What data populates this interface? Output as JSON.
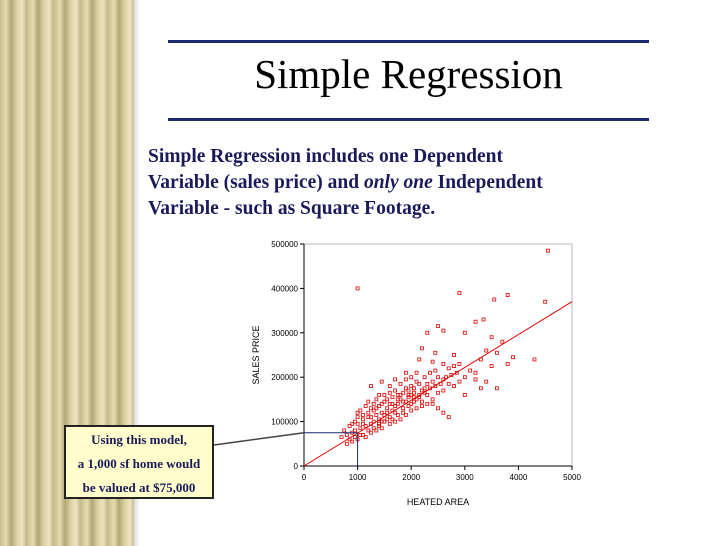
{
  "slide": {
    "title": "Simple Regression",
    "body": {
      "line1": "Simple Regression includes one Dependent",
      "line2_pre": "Variable (sales price)  and ",
      "line2_em": "only one",
      "line2_post": " Independent",
      "line3": "Variable - such as Square Footage."
    },
    "callout": {
      "line1": "Using this model,",
      "line2": "a 1,000 sf home would",
      "line3": "be valued at $75,000"
    }
  },
  "colors": {
    "rule": "#1a2a6c",
    "point": "#dd0000",
    "fit_line": "#dd0000",
    "callout_bg": "#fffecc",
    "text": "#1a1a5a"
  },
  "chart_data": {
    "type": "scatter",
    "xlabel": "HEATED AREA",
    "ylabel": "SALES PRICE",
    "xlim": [
      0,
      5000
    ],
    "ylim": [
      0,
      500000
    ],
    "x_ticks": [
      0,
      1000,
      2000,
      3000,
      4000,
      5000
    ],
    "y_ticks": [
      0,
      100000,
      200000,
      300000,
      400000,
      500000
    ],
    "x_tick_labels": [
      "0",
      "1000",
      "2000",
      "3000",
      "4000",
      "5000"
    ],
    "y_tick_labels": [
      "0",
      "100000",
      "200000",
      "300000",
      "400000",
      "500000"
    ],
    "fit_line": {
      "x": [
        0,
        5000
      ],
      "y": [
        0,
        370000
      ]
    },
    "annotation_point": {
      "x": 1000,
      "y": 75000
    },
    "points": [
      [
        4550,
        485000
      ],
      [
        1000,
        400000
      ],
      [
        2900,
        390000
      ],
      [
        3550,
        375000
      ],
      [
        3800,
        385000
      ],
      [
        4500,
        370000
      ],
      [
        3200,
        325000
      ],
      [
        3350,
        330000
      ],
      [
        2500,
        315000
      ],
      [
        2600,
        305000
      ],
      [
        3000,
        300000
      ],
      [
        3500,
        290000
      ],
      [
        4300,
        240000
      ],
      [
        3900,
        245000
      ],
      [
        3700,
        280000
      ],
      [
        3400,
        260000
      ],
      [
        3600,
        255000
      ],
      [
        3300,
        240000
      ],
      [
        2300,
        300000
      ],
      [
        2200,
        265000
      ],
      [
        2150,
        240000
      ],
      [
        2400,
        235000
      ],
      [
        2700,
        220000
      ],
      [
        2800,
        225000
      ],
      [
        3100,
        215000
      ],
      [
        3200,
        210000
      ],
      [
        2900,
        230000
      ],
      [
        3600,
        175000
      ],
      [
        3300,
        175000
      ],
      [
        3000,
        160000
      ],
      [
        2600,
        120000
      ],
      [
        2700,
        110000
      ],
      [
        2500,
        130000
      ],
      [
        2400,
        140000
      ],
      [
        1450,
        190000
      ],
      [
        1250,
        180000
      ],
      [
        1400,
        160000
      ],
      [
        1550,
        130000
      ],
      [
        1600,
        180000
      ],
      [
        1700,
        170000
      ],
      [
        1800,
        160000
      ],
      [
        1900,
        175000
      ],
      [
        2000,
        180000
      ],
      [
        2100,
        190000
      ],
      [
        2200,
        170000
      ],
      [
        2300,
        160000
      ],
      [
        2000,
        200000
      ],
      [
        1900,
        210000
      ],
      [
        2100,
        210000
      ],
      [
        1700,
        120000
      ],
      [
        1750,
        140000
      ],
      [
        1800,
        150000
      ],
      [
        1850,
        130000
      ],
      [
        1900,
        145000
      ],
      [
        1950,
        155000
      ],
      [
        2000,
        140000
      ],
      [
        2050,
        165000
      ],
      [
        2100,
        150000
      ],
      [
        2150,
        160000
      ],
      [
        2200,
        145000
      ],
      [
        2250,
        175000
      ],
      [
        2300,
        185000
      ],
      [
        2400,
        190000
      ],
      [
        2500,
        200000
      ],
      [
        2600,
        195000
      ],
      [
        2700,
        185000
      ],
      [
        1600,
        110000
      ],
      [
        1650,
        125000
      ],
      [
        1700,
        135000
      ],
      [
        1500,
        115000
      ],
      [
        1550,
        105000
      ],
      [
        1450,
        120000
      ],
      [
        1400,
        105000
      ],
      [
        1350,
        115000
      ],
      [
        1300,
        100000
      ],
      [
        1250,
        95000
      ],
      [
        1200,
        110000
      ],
      [
        1150,
        90000
      ],
      [
        1100,
        105000
      ],
      [
        1050,
        85000
      ],
      [
        1000,
        95000
      ],
      [
        950,
        80000
      ],
      [
        900,
        75000
      ],
      [
        850,
        90000
      ],
      [
        800,
        70000
      ],
      [
        750,
        80000
      ],
      [
        700,
        65000
      ],
      [
        800,
        50000
      ],
      [
        900,
        55000
      ],
      [
        1000,
        60000
      ],
      [
        1100,
        70000
      ],
      [
        1200,
        80000
      ],
      [
        1300,
        85000
      ],
      [
        1400,
        95000
      ],
      [
        1500,
        100000
      ],
      [
        1600,
        140000
      ],
      [
        1650,
        155000
      ],
      [
        1750,
        160000
      ],
      [
        1850,
        165000
      ],
      [
        1950,
        170000
      ],
      [
        2050,
        175000
      ],
      [
        1200,
        120000
      ],
      [
        1300,
        125000
      ],
      [
        1350,
        130000
      ],
      [
        1450,
        140000
      ],
      [
        1550,
        150000
      ],
      [
        1100,
        115000
      ],
      [
        1000,
        110000
      ],
      [
        950,
        100000
      ],
      [
        1250,
        130000
      ],
      [
        1500,
        145000
      ],
      [
        1800,
        185000
      ],
      [
        1900,
        195000
      ],
      [
        2000,
        160000
      ],
      [
        2150,
        185000
      ],
      [
        2250,
        200000
      ],
      [
        2350,
        210000
      ],
      [
        2450,
        215000
      ],
      [
        1700,
        195000
      ],
      [
        1600,
        165000
      ],
      [
        2500,
        165000
      ],
      [
        2600,
        170000
      ],
      [
        2800,
        180000
      ],
      [
        2900,
        190000
      ],
      [
        3000,
        200000
      ],
      [
        1150,
        135000
      ],
      [
        1050,
        125000
      ],
      [
        900,
        95000
      ],
      [
        1400,
        90000
      ],
      [
        1600,
        95000
      ],
      [
        1700,
        100000
      ],
      [
        1800,
        105000
      ],
      [
        1900,
        115000
      ],
      [
        2000,
        125000
      ],
      [
        2100,
        130000
      ],
      [
        2200,
        135000
      ],
      [
        2300,
        140000
      ],
      [
        2400,
        150000
      ],
      [
        1250,
        75000
      ],
      [
        1350,
        80000
      ],
      [
        1450,
        85000
      ],
      [
        1150,
        65000
      ],
      [
        1050,
        70000
      ],
      [
        3400,
        190000
      ],
      [
        3200,
        195000
      ],
      [
        2800,
        250000
      ],
      [
        2600,
        230000
      ],
      [
        2450,
        255000
      ],
      [
        3800,
        230000
      ],
      [
        3500,
        225000
      ],
      [
        1650,
        105000
      ],
      [
        1750,
        115000
      ],
      [
        1850,
        120000
      ],
      [
        1950,
        135000
      ],
      [
        2050,
        145000
      ],
      [
        2150,
        155000
      ],
      [
        1300,
        140000
      ],
      [
        1400,
        135000
      ],
      [
        1500,
        160000
      ],
      [
        1350,
        150000
      ],
      [
        1200,
        145000
      ],
      [
        1100,
        95000
      ],
      [
        950,
        65000
      ],
      [
        850,
        60000
      ],
      [
        1000,
        120000
      ],
      [
        1250,
        110000
      ],
      [
        1450,
        100000
      ],
      [
        1550,
        120000
      ],
      [
        1650,
        140000
      ],
      [
        1750,
        150000
      ],
      [
        1850,
        145000
      ],
      [
        1950,
        160000
      ],
      [
        2050,
        155000
      ],
      [
        2250,
        165000
      ],
      [
        2350,
        175000
      ],
      [
        2450,
        180000
      ],
      [
        2550,
        185000
      ],
      [
        2650,
        200000
      ],
      [
        2750,
        205000
      ],
      [
        2850,
        210000
      ]
    ]
  }
}
